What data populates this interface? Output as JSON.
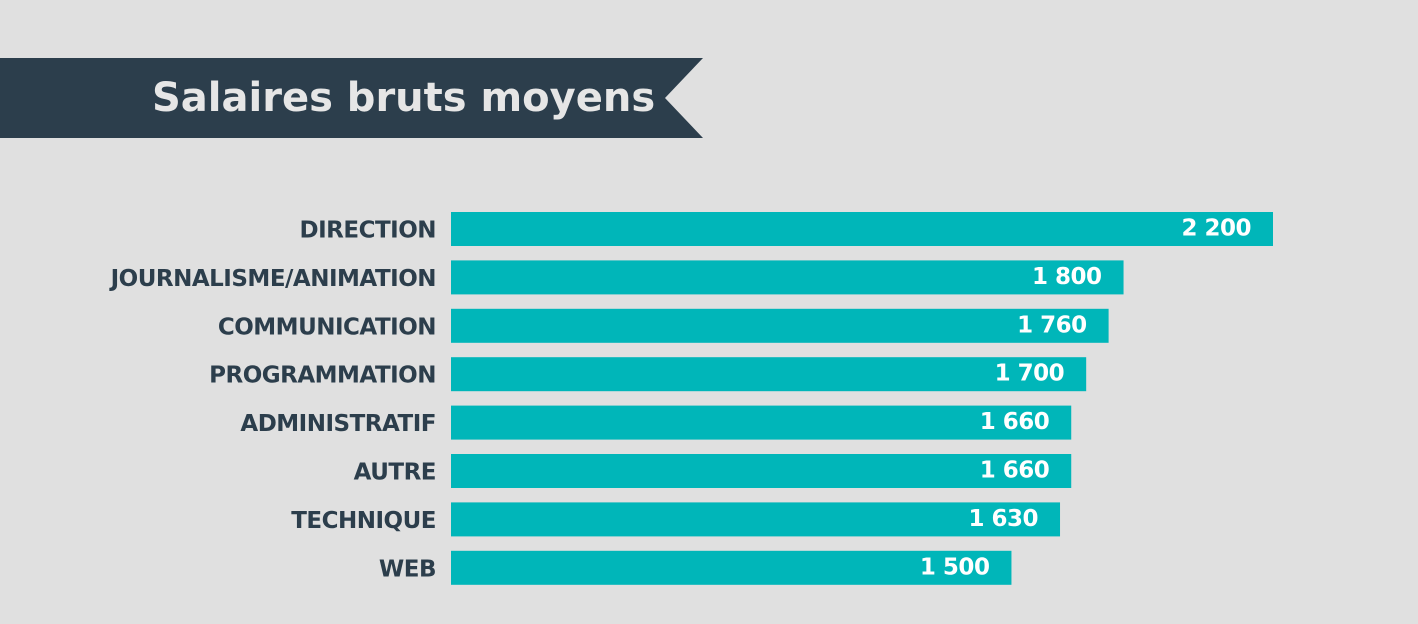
{
  "chart_data": {
    "type": "bar",
    "orientation": "horizontal",
    "title": "Salaires bruts moyens",
    "categories": [
      "DIRECTION",
      "JOURNALISME/ANIMATION",
      "COMMUNICATION",
      "PROGRAMMATION",
      "ADMINISTRATIF",
      "AUTRE",
      "TECHNIQUE",
      "WEB"
    ],
    "values": [
      2200,
      1800,
      1760,
      1700,
      1660,
      1660,
      1630,
      1500
    ],
    "value_labels": [
      "2 200",
      "1 800",
      "1 760",
      "1 700",
      "1 660",
      "1 660",
      "1 630",
      "1 500"
    ],
    "color": "#00b6b9"
  }
}
